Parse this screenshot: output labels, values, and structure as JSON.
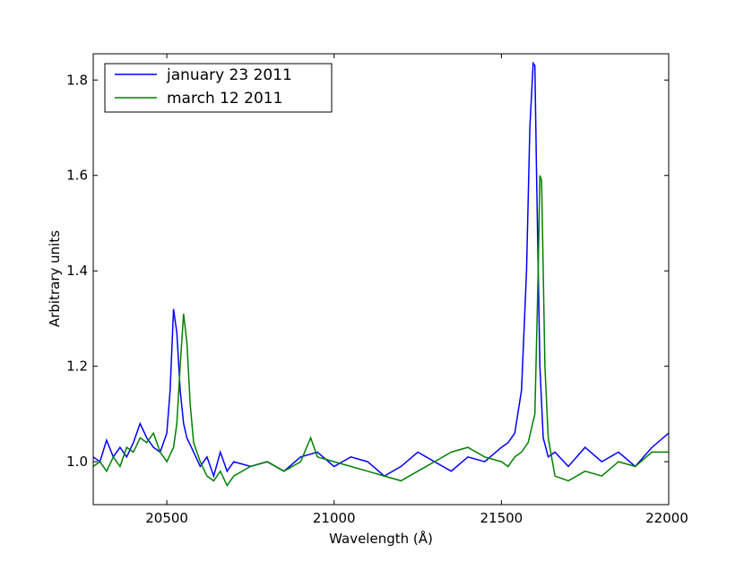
{
  "chart_data": {
    "type": "line",
    "xlabel": "Wavelength (Å)",
    "ylabel": "Arbitrary units",
    "xlim": [
      20280,
      22000
    ],
    "ylim": [
      0.91,
      1.855
    ],
    "xticks": [
      20500,
      21000,
      21500,
      22000
    ],
    "yticks": [
      1.0,
      1.2,
      1.4,
      1.6,
      1.8
    ],
    "xtick_labels": [
      "20500",
      "21000",
      "21500",
      "22000"
    ],
    "ytick_labels": [
      "1.0",
      "1.2",
      "1.4",
      "1.6",
      "1.8"
    ],
    "grid": false,
    "legend_position": "top-left",
    "series": [
      {
        "name": "january 23 2011",
        "color": "#0000ff",
        "x": [
          20280,
          20300,
          20320,
          20340,
          20360,
          20380,
          20400,
          20420,
          20440,
          20460,
          20480,
          20500,
          20510,
          20520,
          20530,
          20540,
          20550,
          20560,
          20580,
          20600,
          20620,
          20640,
          20660,
          20680,
          20700,
          20750,
          20800,
          20850,
          20900,
          20950,
          21000,
          21050,
          21100,
          21150,
          21200,
          21250,
          21300,
          21350,
          21400,
          21450,
          21500,
          21520,
          21540,
          21560,
          21575,
          21585,
          21595,
          21600,
          21605,
          21615,
          21625,
          21640,
          21660,
          21700,
          21750,
          21800,
          21850,
          21900,
          21950,
          22000
        ],
        "y": [
          1.01,
          1.0,
          1.045,
          1.01,
          1.03,
          1.01,
          1.04,
          1.08,
          1.05,
          1.03,
          1.02,
          1.06,
          1.15,
          1.32,
          1.27,
          1.15,
          1.08,
          1.05,
          1.02,
          0.99,
          1.01,
          0.97,
          1.02,
          0.98,
          1.0,
          0.99,
          1.0,
          0.98,
          1.01,
          1.02,
          0.99,
          1.01,
          1.0,
          0.97,
          0.99,
          1.02,
          1.0,
          0.98,
          1.01,
          1.0,
          1.03,
          1.04,
          1.06,
          1.15,
          1.4,
          1.7,
          1.835,
          1.83,
          1.6,
          1.2,
          1.05,
          1.01,
          1.02,
          0.99,
          1.03,
          1.0,
          1.02,
          0.99,
          1.03,
          1.06
        ]
      },
      {
        "name": "march 12 2011",
        "color": "#008000",
        "x": [
          20280,
          20300,
          20320,
          20340,
          20360,
          20380,
          20400,
          20420,
          20440,
          20460,
          20480,
          20500,
          20520,
          20530,
          20540,
          20550,
          20560,
          20570,
          20580,
          20600,
          20620,
          20640,
          20660,
          20680,
          20700,
          20750,
          20800,
          20850,
          20900,
          20930,
          20950,
          21000,
          21050,
          21100,
          21150,
          21200,
          21250,
          21300,
          21350,
          21400,
          21450,
          21500,
          21520,
          21540,
          21560,
          21580,
          21600,
          21610,
          21615,
          21620,
          21630,
          21640,
          21660,
          21700,
          21750,
          21800,
          21850,
          21900,
          21950,
          22000
        ],
        "y": [
          0.99,
          1.0,
          0.98,
          1.01,
          0.99,
          1.03,
          1.02,
          1.05,
          1.04,
          1.06,
          1.02,
          1.0,
          1.03,
          1.08,
          1.2,
          1.31,
          1.25,
          1.12,
          1.04,
          1.0,
          0.97,
          0.96,
          0.98,
          0.95,
          0.97,
          0.99,
          1.0,
          0.98,
          1.0,
          1.05,
          1.01,
          1.0,
          0.99,
          0.98,
          0.97,
          0.96,
          0.98,
          1.0,
          1.02,
          1.03,
          1.01,
          1.0,
          0.99,
          1.01,
          1.02,
          1.04,
          1.1,
          1.4,
          1.6,
          1.59,
          1.2,
          1.05,
          0.97,
          0.96,
          0.98,
          0.97,
          1.0,
          0.99,
          1.02,
          1.02
        ]
      }
    ]
  }
}
